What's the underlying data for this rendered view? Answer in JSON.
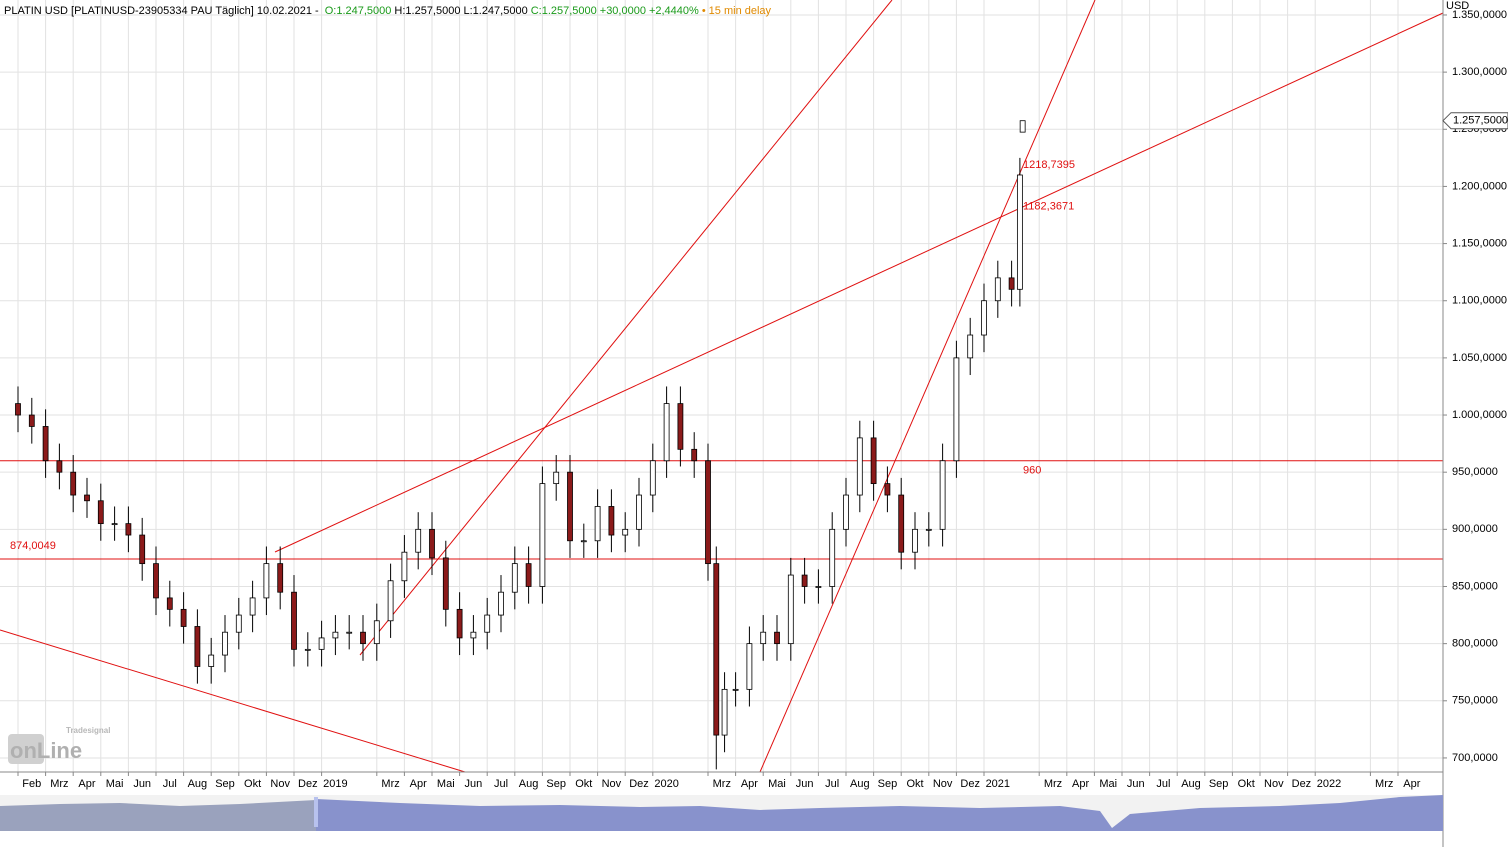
{
  "chart_data": {
    "type": "candlestick",
    "header": [
      {
        "text": "PLATIN USD [PLATINUSD-23905334 PAU Täglich] 10.02.2021 - ",
        "color": "#000000"
      },
      {
        "text": "O:1.247,5000",
        "color": "#1a9a1a"
      },
      {
        "text": "H:1.257,5000",
        "color": "#000000"
      },
      {
        "text": "L:1.247,5000",
        "color": "#000000"
      },
      {
        "text": "C:1.257,5000",
        "color": "#1a9a1a"
      },
      {
        "text": "+30,0000",
        "color": "#1a9a1a"
      },
      {
        "text": "+2,4440%",
        "color": "#1a9a1a"
      },
      {
        "text": "•",
        "color": "#e08a00"
      },
      {
        "text": "15 min delay",
        "color": "#e08a00"
      }
    ],
    "y_unit": "USD",
    "watermark": [
      "Tradesignal",
      "onLine"
    ],
    "up_color": "#ffffff",
    "down_color": "#8b1a1a",
    "line_color": "#e01010",
    "grid": true,
    "xlim": [
      -0.652,
      51.63
    ],
    "ylim": [
      687.7,
      1363.1
    ],
    "xticks": [
      {
        "value": 0,
        "label": "Feb"
      },
      {
        "value": 1,
        "label": "Mrz"
      },
      {
        "value": 2,
        "label": "Apr"
      },
      {
        "value": 3,
        "label": "Mai"
      },
      {
        "value": 4,
        "label": "Jun"
      },
      {
        "value": 5,
        "label": "Jul"
      },
      {
        "value": 6,
        "label": "Aug"
      },
      {
        "value": 7,
        "label": "Sep"
      },
      {
        "value": 8,
        "label": "Okt"
      },
      {
        "value": 9,
        "label": "Nov"
      },
      {
        "value": 10,
        "label": "Dez"
      },
      {
        "value": 11,
        "label": "2019"
      },
      {
        "value": 13,
        "label": "Mrz"
      },
      {
        "value": 14,
        "label": "Apr"
      },
      {
        "value": 15,
        "label": "Mai"
      },
      {
        "value": 16,
        "label": "Jun"
      },
      {
        "value": 17,
        "label": "Jul"
      },
      {
        "value": 18,
        "label": "Aug"
      },
      {
        "value": 19,
        "label": "Sep"
      },
      {
        "value": 20,
        "label": "Okt"
      },
      {
        "value": 21,
        "label": "Nov"
      },
      {
        "value": 22,
        "label": "Dez"
      },
      {
        "value": 23,
        "label": "2020"
      },
      {
        "value": 25,
        "label": "Mrz"
      },
      {
        "value": 26,
        "label": "Apr"
      },
      {
        "value": 27,
        "label": "Mai"
      },
      {
        "value": 28,
        "label": "Jun"
      },
      {
        "value": 29,
        "label": "Jul"
      },
      {
        "value": 30,
        "label": "Aug"
      },
      {
        "value": 31,
        "label": "Sep"
      },
      {
        "value": 32,
        "label": "Okt"
      },
      {
        "value": 33,
        "label": "Nov"
      },
      {
        "value": 34,
        "label": "Dez"
      },
      {
        "value": 35,
        "label": "2021"
      },
      {
        "value": 37,
        "label": "Mrz"
      },
      {
        "value": 38,
        "label": "Apr"
      },
      {
        "value": 39,
        "label": "Mai"
      },
      {
        "value": 40,
        "label": "Jun"
      },
      {
        "value": 41,
        "label": "Jul"
      },
      {
        "value": 42,
        "label": "Aug"
      },
      {
        "value": 43,
        "label": "Sep"
      },
      {
        "value": 44,
        "label": "Okt"
      },
      {
        "value": 45,
        "label": "Nov"
      },
      {
        "value": 46,
        "label": "Dez"
      },
      {
        "value": 47,
        "label": "2022"
      },
      {
        "value": 49,
        "label": "Mrz"
      },
      {
        "value": 50,
        "label": "Apr"
      }
    ],
    "yticks": [
      {
        "value": 700,
        "label": "700,0000"
      },
      {
        "value": 750,
        "label": "750,0000"
      },
      {
        "value": 800,
        "label": "800,0000"
      },
      {
        "value": 850,
        "label": "850,0000"
      },
      {
        "value": 900,
        "label": "900,0000"
      },
      {
        "value": 950,
        "label": "950,0000"
      },
      {
        "value": 1000,
        "label": "1.000,0000"
      },
      {
        "value": 1050,
        "label": "1.050,0000"
      },
      {
        "value": 1100,
        "label": "1.100,0000"
      },
      {
        "value": 1150,
        "label": "1.150,0000"
      },
      {
        "value": 1200,
        "label": "1.200,0000"
      },
      {
        "value": 1250,
        "label": "1.250,0000"
      },
      {
        "value": 1300,
        "label": "1.300,0000"
      },
      {
        "value": 1350,
        "label": "1.350,0000"
      }
    ],
    "levels": [
      {
        "value": 874.0049,
        "label": "874,0049"
      },
      {
        "value": 960,
        "label": "960"
      }
    ],
    "annotations": [
      {
        "value": 1218.7395,
        "label": "1218,7395"
      },
      {
        "value": 1182.3671,
        "label": "1182,3671"
      }
    ],
    "last_price": {
      "value": 1257.5,
      "label": "1.257,5000"
    },
    "x": [
      0,
      0.5,
      1,
      1.5,
      2,
      2.5,
      3,
      3.5,
      4,
      4.5,
      5,
      5.5,
      6,
      6.5,
      7,
      7.5,
      8,
      8.5,
      9,
      9.5,
      10,
      10.5,
      11,
      11.5,
      12,
      12.5,
      13,
      13.5,
      14,
      14.5,
      15,
      15.5,
      16,
      16.5,
      17,
      17.5,
      18,
      18.5,
      19,
      19.5,
      20,
      20.5,
      21,
      21.5,
      22,
      22.5,
      23,
      23.5,
      24,
      24.5,
      25,
      25.3,
      25.6,
      26,
      26.5,
      27,
      27.5,
      28,
      28.5,
      29,
      29.5,
      30,
      30.5,
      31,
      31.5,
      32,
      32.5,
      33,
      33.5,
      34,
      34.5,
      35,
      35.5,
      36,
      36.3,
      36.4
    ],
    "open": [
      1010,
      1000,
      990,
      960,
      950,
      930,
      925,
      905,
      905,
      895,
      870,
      840,
      830,
      815,
      780,
      790,
      810,
      825,
      840,
      870,
      845,
      795,
      795,
      805,
      810,
      810,
      800,
      820,
      855,
      880,
      900,
      875,
      830,
      805,
      810,
      825,
      845,
      870,
      850,
      940,
      950,
      890,
      890,
      920,
      895,
      900,
      930,
      960,
      1010,
      970,
      960,
      870,
      720,
      760,
      760,
      800,
      810,
      800,
      860,
      850,
      850,
      900,
      930,
      980,
      940,
      930,
      880,
      900,
      900,
      960,
      1050,
      1070,
      1100,
      1120,
      1110,
      1247.5
    ],
    "high": [
      1025,
      1015,
      1005,
      975,
      965,
      945,
      940,
      920,
      920,
      910,
      885,
      855,
      845,
      830,
      805,
      825,
      840,
      855,
      885,
      885,
      860,
      810,
      820,
      825,
      825,
      825,
      835,
      870,
      895,
      915,
      915,
      890,
      845,
      825,
      840,
      860,
      885,
      885,
      955,
      965,
      965,
      905,
      935,
      935,
      915,
      945,
      975,
      1025,
      1025,
      985,
      975,
      885,
      775,
      775,
      815,
      825,
      825,
      875,
      875,
      865,
      915,
      945,
      995,
      995,
      955,
      945,
      915,
      915,
      975,
      1065,
      1085,
      1115,
      1135,
      1135,
      1225,
      1257.5
    ],
    "low": [
      985,
      975,
      945,
      935,
      915,
      910,
      890,
      890,
      880,
      855,
      825,
      815,
      800,
      765,
      765,
      775,
      795,
      810,
      825,
      830,
      780,
      780,
      780,
      790,
      795,
      785,
      785,
      805,
      840,
      865,
      860,
      815,
      790,
      790,
      795,
      810,
      830,
      835,
      835,
      925,
      875,
      875,
      875,
      880,
      880,
      885,
      915,
      945,
      955,
      945,
      855,
      690,
      705,
      745,
      745,
      785,
      785,
      785,
      835,
      835,
      835,
      885,
      915,
      925,
      915,
      865,
      865,
      885,
      885,
      945,
      1035,
      1055,
      1085,
      1095,
      1095,
      1247.5
    ],
    "close": [
      1000,
      990,
      960,
      950,
      930,
      925,
      905,
      905,
      895,
      870,
      840,
      830,
      815,
      780,
      790,
      810,
      825,
      840,
      870,
      845,
      795,
      795,
      805,
      810,
      810,
      800,
      820,
      855,
      880,
      900,
      875,
      830,
      805,
      810,
      825,
      845,
      870,
      850,
      940,
      950,
      890,
      890,
      920,
      895,
      900,
      930,
      960,
      1010,
      970,
      960,
      870,
      720,
      760,
      760,
      800,
      810,
      800,
      860,
      850,
      850,
      900,
      930,
      980,
      940,
      930,
      880,
      900,
      900,
      960,
      1050,
      1070,
      1100,
      1120,
      1110,
      1210,
      1257.5
    ]
  }
}
